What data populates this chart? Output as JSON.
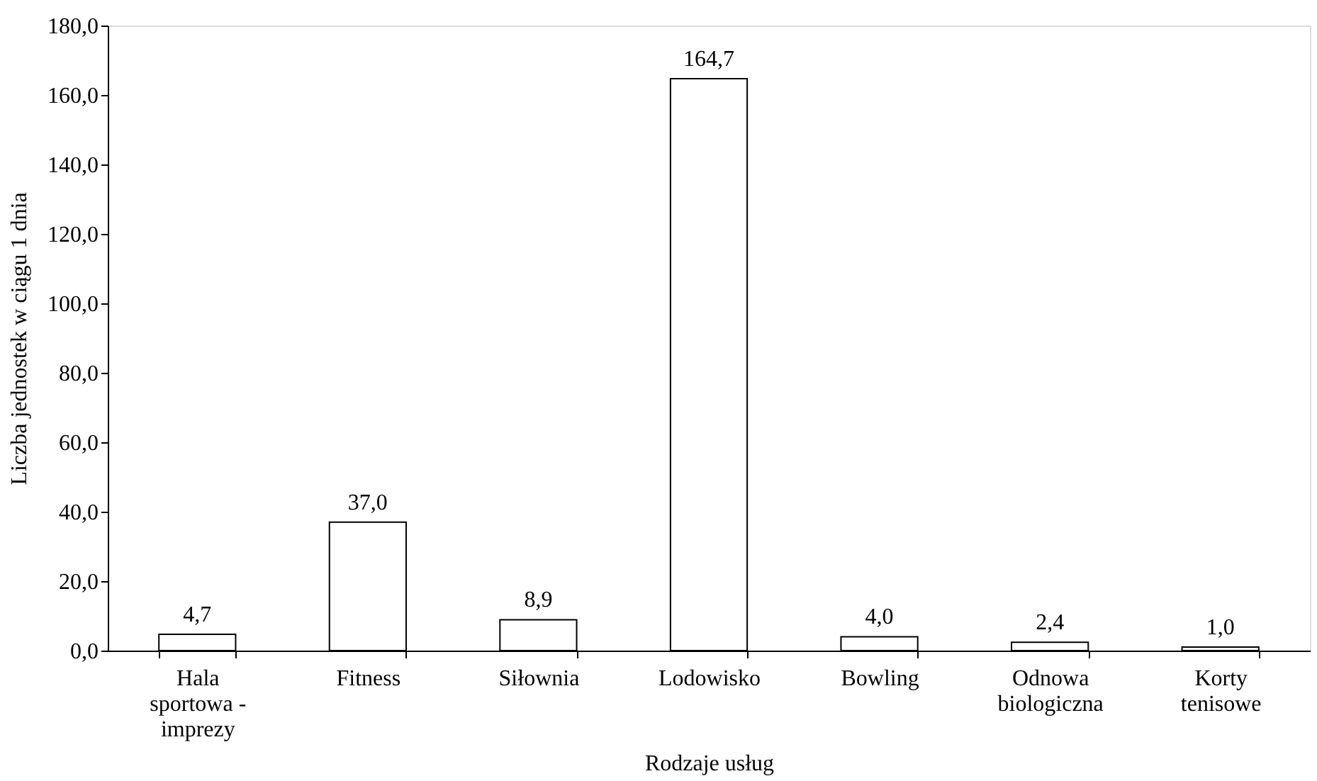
{
  "chart_data": {
    "type": "bar",
    "xlabel": "Rodzaje usług",
    "ylabel": "Liczba jednostek w ciągu 1 dnia",
    "categories": [
      "Hala sportowa - imprezy",
      "Fitness",
      "Siłownia",
      "Lodowisko",
      "Bowling",
      "Odnowa biologiczna",
      "Korty tenisowe"
    ],
    "values": [
      4.7,
      37.0,
      8.9,
      164.7,
      4.0,
      2.4,
      1.0
    ],
    "value_labels": [
      "4,7",
      "37,0",
      "8,9",
      "164,7",
      "4,0",
      "2,4",
      "1,0"
    ],
    "color": "#ffffff",
    "ylim": [
      0,
      180
    ],
    "yticks": [
      {
        "value": 0,
        "label": "0,0"
      },
      {
        "value": 20,
        "label": "20,0"
      },
      {
        "value": 40,
        "label": "40,0"
      },
      {
        "value": 60,
        "label": "60,0"
      },
      {
        "value": 80,
        "label": "80,0"
      },
      {
        "value": 100,
        "label": "100,0"
      },
      {
        "value": 120,
        "label": "120,0"
      },
      {
        "value": 140,
        "label": "140,0"
      },
      {
        "value": 160,
        "label": "160,0"
      },
      {
        "value": 180,
        "label": "180,0"
      }
    ],
    "grid": false
  }
}
